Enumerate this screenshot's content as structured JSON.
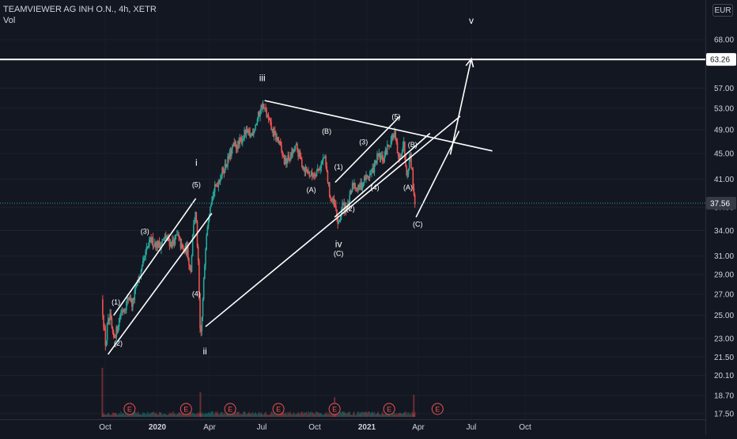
{
  "header": {
    "title": "TEAMVIEWER AG INH O.N., 4h, XETR",
    "volume_label": "Vol",
    "currency_button": "EUR"
  },
  "colors": {
    "background": "#131722",
    "up_candle": "#26a69a",
    "down_candle": "#ef5350",
    "drawing": "#ffffffff",
    "price_badge_last": "#363a45",
    "earnings_marker": "#ef5350",
    "text": "#d1d4dc"
  },
  "chart_data": {
    "type": "candlestick",
    "symbol": "TEAMVIEWER AG INH O.N.",
    "interval": "4h",
    "exchange": "XETR",
    "currency": "EUR",
    "x_axis": {
      "ticks": [
        {
          "label": "Oct",
          "date": "2019-10-01"
        },
        {
          "label": "2020",
          "date": "2020-01-01",
          "bold": true
        },
        {
          "label": "Apr",
          "date": "2020-04-01"
        },
        {
          "label": "Jul",
          "date": "2020-07-01"
        },
        {
          "label": "Oct",
          "date": "2020-10-01"
        },
        {
          "label": "2021",
          "date": "2021-01-01",
          "bold": true
        },
        {
          "label": "Apr",
          "date": "2021-04-01"
        },
        {
          "label": "Jul",
          "date": "2021-07-01"
        },
        {
          "label": "Oct",
          "date": "2021-10-01"
        }
      ]
    },
    "y_axis": {
      "scale": "log",
      "range": [
        17.0,
        80.0
      ],
      "ticks": [
        "17.50",
        "18.70",
        "20.10",
        "21.50",
        "23.00",
        "25.00",
        "27.00",
        "29.00",
        "31.00",
        "34.00",
        "37.00",
        "41.00",
        "45.00",
        "49.00",
        "53.00",
        "57.00",
        "63.00",
        "68.00"
      ]
    },
    "price_badges": [
      {
        "label": "63.26",
        "value": 63.26,
        "style": "white"
      },
      {
        "label": "37.56",
        "value": 37.56,
        "style": "last"
      }
    ],
    "last_price": 37.56,
    "price_path": [
      [
        "2019-09-25",
        26.5
      ],
      [
        "2019-09-28",
        24.5
      ],
      [
        "2019-10-02",
        22.3
      ],
      [
        "2019-10-05",
        24.2
      ],
      [
        "2019-10-10",
        24.8
      ],
      [
        "2019-10-15",
        22.9
      ],
      [
        "2019-10-22",
        23.8
      ],
      [
        "2019-10-28",
        25.3
      ],
      [
        "2019-11-05",
        25.8
      ],
      [
        "2019-11-12",
        26.8
      ],
      [
        "2019-11-18",
        26.0
      ],
      [
        "2019-11-25",
        27.8
      ],
      [
        "2019-12-05",
        29.5
      ],
      [
        "2019-12-12",
        31.5
      ],
      [
        "2019-12-20",
        32.8
      ],
      [
        "2020-01-05",
        32.2
      ],
      [
        "2020-01-15",
        33.2
      ],
      [
        "2020-01-25",
        32.4
      ],
      [
        "2020-02-05",
        33.4
      ],
      [
        "2020-02-15",
        31.5
      ],
      [
        "2020-02-22",
        31.8
      ],
      [
        "2020-02-28",
        29.2
      ],
      [
        "2020-03-04",
        35.0
      ],
      [
        "2020-03-08",
        36.2
      ],
      [
        "2020-03-12",
        30.5
      ],
      [
        "2020-03-16",
        22.6
      ],
      [
        "2020-03-20",
        26.0
      ],
      [
        "2020-03-26",
        33.5
      ],
      [
        "2020-04-02",
        37.6
      ],
      [
        "2020-04-10",
        39.5
      ],
      [
        "2020-04-20",
        41.5
      ],
      [
        "2020-05-01",
        43.5
      ],
      [
        "2020-05-12",
        46.0
      ],
      [
        "2020-05-22",
        46.5
      ],
      [
        "2020-06-02",
        48.5
      ],
      [
        "2020-06-12",
        48.0
      ],
      [
        "2020-06-22",
        50.5
      ],
      [
        "2020-07-02",
        53.8
      ],
      [
        "2020-07-10",
        51.5
      ],
      [
        "2020-07-20",
        48.5
      ],
      [
        "2020-07-30",
        47.0
      ],
      [
        "2020-08-10",
        43.5
      ],
      [
        "2020-08-20",
        44.5
      ],
      [
        "2020-08-30",
        46.0
      ],
      [
        "2020-09-10",
        43.0
      ],
      [
        "2020-09-25",
        41.5
      ],
      [
        "2020-10-08",
        42.5
      ],
      [
        "2020-10-18",
        44.5
      ],
      [
        "2020-10-28",
        38.5
      ],
      [
        "2020-11-06",
        37.0
      ],
      [
        "2020-11-12",
        34.5
      ],
      [
        "2020-11-18",
        37.2
      ],
      [
        "2020-11-28",
        36.8
      ],
      [
        "2020-12-08",
        40.5
      ],
      [
        "2020-12-18",
        39.5
      ],
      [
        "2020-12-28",
        41.0
      ],
      [
        "2021-01-10",
        42.0
      ],
      [
        "2021-01-20",
        44.5
      ],
      [
        "2021-01-30",
        44.0
      ],
      [
        "2021-02-08",
        46.5
      ],
      [
        "2021-02-18",
        48.5
      ],
      [
        "2021-02-26",
        43.5
      ],
      [
        "2021-03-06",
        47.0
      ],
      [
        "2021-03-12",
        41.8
      ],
      [
        "2021-03-18",
        45.0
      ],
      [
        "2021-03-22",
        41.0
      ],
      [
        "2021-03-26",
        37.6
      ]
    ],
    "volume_spikes": [
      {
        "date": "2019-09-26",
        "v": 1.0
      },
      {
        "date": "2020-03-16",
        "v": 0.5
      },
      {
        "date": "2020-11-05",
        "v": 0.4
      },
      {
        "date": "2021-03-24",
        "v": 0.45
      }
    ],
    "earnings_markers": [
      {
        "label": "E",
        "date": "2019-11-13"
      },
      {
        "label": "E",
        "date": "2020-02-20"
      },
      {
        "label": "E",
        "date": "2020-05-07"
      },
      {
        "label": "E",
        "date": "2020-07-30"
      },
      {
        "label": "E",
        "date": "2020-11-05"
      },
      {
        "label": "E",
        "date": "2021-02-09"
      },
      {
        "label": "E",
        "date": "2021-05-04"
      }
    ],
    "annotations": [
      {
        "text": "(1)",
        "date": "2019-10-20",
        "price": 26.0
      },
      {
        "text": "(2)",
        "date": "2019-10-24",
        "price": 22.4
      },
      {
        "text": "(3)",
        "date": "2019-12-10",
        "price": 33.6
      },
      {
        "text": "(4)",
        "date": "2020-03-09",
        "price": 26.8
      },
      {
        "text": "(5)",
        "date": "2020-03-09",
        "price": 39.8
      },
      {
        "text": "i",
        "date": "2020-03-09",
        "price": 43.0
      },
      {
        "text": "ii",
        "date": "2020-03-24",
        "price": 21.7
      },
      {
        "text": "iii",
        "date": "2020-07-02",
        "price": 58.5
      },
      {
        "text": "(A)",
        "date": "2020-09-25",
        "price": 39.1
      },
      {
        "text": "(B)",
        "date": "2020-10-22",
        "price": 48.3
      },
      {
        "text": "iv",
        "date": "2020-11-12",
        "price": 32.0
      },
      {
        "text": "(C)",
        "date": "2020-11-12",
        "price": 31.0
      },
      {
        "text": "(1)",
        "date": "2020-11-12",
        "price": 42.5
      },
      {
        "text": "(2)",
        "date": "2020-12-03",
        "price": 36.5
      },
      {
        "text": "(3)",
        "date": "2020-12-26",
        "price": 46.5
      },
      {
        "text": "(4)",
        "date": "2021-01-15",
        "price": 39.4
      },
      {
        "text": "(5)",
        "date": "2021-02-21",
        "price": 51.0
      },
      {
        "text": "(A)",
        "date": "2021-03-14",
        "price": 39.4
      },
      {
        "text": "(B)",
        "date": "2021-03-22",
        "price": 46.0
      },
      {
        "text": "(C)",
        "date": "2021-03-31",
        "price": 34.5
      },
      {
        "text": "v",
        "date": "2021-07-01",
        "price": 72.0
      }
    ],
    "trendlines": [
      {
        "from": [
          "2019-10-16",
          25.0
        ],
        "to": [
          "2020-03-08",
          38.2
        ]
      },
      {
        "from": [
          "2019-10-06",
          21.7
        ],
        "to": [
          "2020-04-05",
          36.2
        ]
      },
      {
        "from": [
          "2020-03-25",
          24.0
        ],
        "to": [
          "2021-06-12",
          51.5
        ]
      },
      {
        "from": [
          "2020-07-06",
          54.5
        ],
        "to": [
          "2021-08-06",
          45.4
        ]
      },
      {
        "from": [
          "2020-11-06",
          40.5
        ],
        "to": [
          "2021-02-28",
          51.5
        ]
      },
      {
        "from": [
          "2020-11-05",
          35.7
        ],
        "to": [
          "2021-04-21",
          48.4
        ]
      },
      {
        "from": [
          "2021-03-28",
          35.7
        ],
        "to": [
          "2021-06-10",
          48.8
        ]
      }
    ],
    "arrow": {
      "from": [
        "2021-05-26",
        44.8
      ],
      "to": [
        "2021-07-01",
        63.4
      ]
    },
    "horizontal_line": {
      "price": 63.26
    }
  }
}
